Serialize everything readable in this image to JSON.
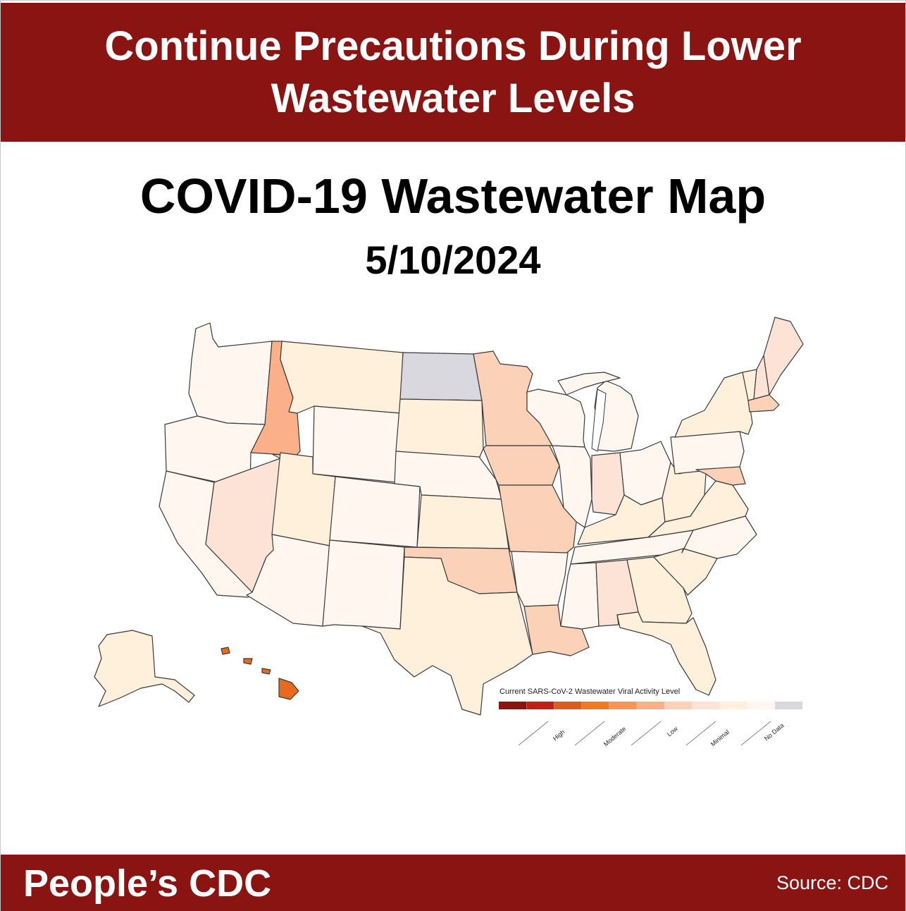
{
  "banner": {
    "headline": "Continue Precautions During Lower Wastewater Levels"
  },
  "map": {
    "title": "COVID-19 Wastewater Map",
    "date": "5/10/2024",
    "colors": {
      "minimal_light": "#fff7ef",
      "minimal": "#fff0dc",
      "low_light": "#fde3d6",
      "low": "#fbd1b8",
      "moderate": "#fcb08a",
      "high": "#e86a1e",
      "no_data": "#d8d8de"
    },
    "states": [
      {
        "state": "Washington",
        "level": "minimal_light"
      },
      {
        "state": "Oregon",
        "level": "minimal_light"
      },
      {
        "state": "California",
        "level": "minimal_light"
      },
      {
        "state": "Idaho",
        "level": "moderate"
      },
      {
        "state": "Nevada",
        "level": "low_light"
      },
      {
        "state": "Montana",
        "level": "minimal"
      },
      {
        "state": "Wyoming",
        "level": "minimal_light"
      },
      {
        "state": "Utah",
        "level": "minimal"
      },
      {
        "state": "Arizona",
        "level": "minimal_light"
      },
      {
        "state": "Colorado",
        "level": "minimal_light"
      },
      {
        "state": "New Mexico",
        "level": "minimal_light"
      },
      {
        "state": "North Dakota",
        "level": "no_data"
      },
      {
        "state": "South Dakota",
        "level": "minimal"
      },
      {
        "state": "Nebraska",
        "level": "minimal_light"
      },
      {
        "state": "Kansas",
        "level": "minimal"
      },
      {
        "state": "Oklahoma",
        "level": "low"
      },
      {
        "state": "Texas",
        "level": "minimal"
      },
      {
        "state": "Minnesota",
        "level": "low"
      },
      {
        "state": "Iowa",
        "level": "low"
      },
      {
        "state": "Missouri",
        "level": "low"
      },
      {
        "state": "Arkansas",
        "level": "minimal_light"
      },
      {
        "state": "Louisiana",
        "level": "low"
      },
      {
        "state": "Wisconsin",
        "level": "minimal_light"
      },
      {
        "state": "Illinois",
        "level": "minimal_light"
      },
      {
        "state": "Michigan",
        "level": "minimal_light"
      },
      {
        "state": "Indiana",
        "level": "low_light"
      },
      {
        "state": "Ohio",
        "level": "minimal_light"
      },
      {
        "state": "Kentucky",
        "level": "minimal"
      },
      {
        "state": "Tennessee",
        "level": "minimal_light"
      },
      {
        "state": "Mississippi",
        "level": "minimal_light"
      },
      {
        "state": "Alabama",
        "level": "low_light"
      },
      {
        "state": "Georgia",
        "level": "minimal"
      },
      {
        "state": "Florida",
        "level": "minimal"
      },
      {
        "state": "South Carolina",
        "level": "minimal"
      },
      {
        "state": "North Carolina",
        "level": "minimal_light"
      },
      {
        "state": "Virginia",
        "level": "minimal"
      },
      {
        "state": "West Virginia",
        "level": "minimal"
      },
      {
        "state": "Maryland",
        "level": "low"
      },
      {
        "state": "Pennsylvania",
        "level": "minimal_light"
      },
      {
        "state": "New York",
        "level": "minimal"
      },
      {
        "state": "Vermont",
        "level": "minimal"
      },
      {
        "state": "New Hampshire",
        "level": "low_light"
      },
      {
        "state": "Maine",
        "level": "low_light"
      },
      {
        "state": "Massachusetts",
        "level": "low"
      },
      {
        "state": "Alaska",
        "level": "minimal"
      },
      {
        "state": "Hawaii",
        "level": "high"
      }
    ]
  },
  "legend": {
    "title": "Current SARS-CoV-2 Wastewater Viral Activity Level",
    "swatches": [
      "#8c1310",
      "#c0201a",
      "#d85e1a",
      "#f07a22",
      "#fa9358",
      "#fcb08a",
      "#fdd0b8",
      "#fde3d6",
      "#fff0dc",
      "#fff7ef",
      "#d8d8de"
    ],
    "labels": [
      "High",
      "Moderate",
      "Low",
      "Minimal",
      "No Data"
    ]
  },
  "footer": {
    "brand": "People’s CDC",
    "source": "Source: CDC"
  }
}
